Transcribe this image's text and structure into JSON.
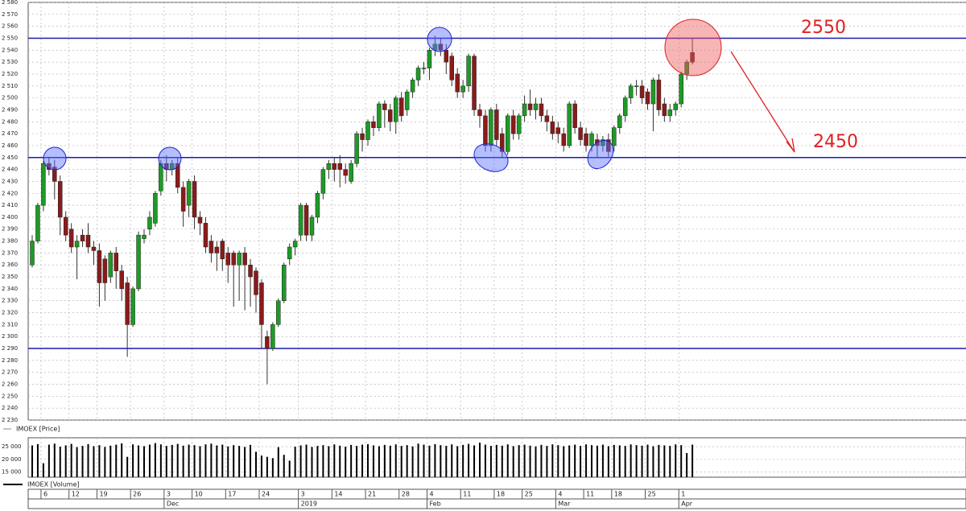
{
  "chart_data": {
    "type": "candlestick",
    "price_legend": "IMOEX [Price]",
    "volume_legend": "IMOEX [Volume]",
    "up_color": "#1e9a26",
    "down_color": "#8a1b1b",
    "level_color": "#1a1ab0",
    "ylim": [
      2230,
      2580
    ],
    "yticks": [
      {
        "value": 2230,
        "label": "2 230"
      },
      {
        "value": 2240,
        "label": "2 240"
      },
      {
        "value": 2250,
        "label": "2 250"
      },
      {
        "value": 2260,
        "label": "2 260"
      },
      {
        "value": 2270,
        "label": "2 270"
      },
      {
        "value": 2280,
        "label": "2 280"
      },
      {
        "value": 2290,
        "label": "2 290"
      },
      {
        "value": 2300,
        "label": "2 300"
      },
      {
        "value": 2310,
        "label": "2 310"
      },
      {
        "value": 2320,
        "label": "2 320"
      },
      {
        "value": 2330,
        "label": "2 330"
      },
      {
        "value": 2340,
        "label": "2 340"
      },
      {
        "value": 2350,
        "label": "2 350"
      },
      {
        "value": 2360,
        "label": "2 360"
      },
      {
        "value": 2370,
        "label": "2 370"
      },
      {
        "value": 2380,
        "label": "2 380"
      },
      {
        "value": 2390,
        "label": "2 390"
      },
      {
        "value": 2400,
        "label": "2 400"
      },
      {
        "value": 2410,
        "label": "2 410"
      },
      {
        "value": 2420,
        "label": "2 420"
      },
      {
        "value": 2430,
        "label": "2 430"
      },
      {
        "value": 2440,
        "label": "2 440"
      },
      {
        "value": 2450,
        "label": "2 450"
      },
      {
        "value": 2460,
        "label": "2 460"
      },
      {
        "value": 2470,
        "label": "2 470"
      },
      {
        "value": 2480,
        "label": "2 480"
      },
      {
        "value": 2490,
        "label": "2 490"
      },
      {
        "value": 2500,
        "label": "2 500"
      },
      {
        "value": 2510,
        "label": "2 510"
      },
      {
        "value": 2520,
        "label": "2 520"
      },
      {
        "value": 2530,
        "label": "2 530"
      },
      {
        "value": 2540,
        "label": "2 540"
      },
      {
        "value": 2550,
        "label": "2 550"
      },
      {
        "value": 2560,
        "label": "2 560"
      },
      {
        "value": 2570,
        "label": "2 570"
      },
      {
        "value": 2580,
        "label": "2 580"
      }
    ],
    "levels": [
      2550,
      2450,
      2290
    ],
    "annotations": [
      "2550",
      "2450"
    ],
    "vylim": [
      13000,
      28500
    ],
    "vyticks": [
      {
        "value": 25000,
        "label": "25 000"
      },
      {
        "value": 20000,
        "label": "20 000"
      },
      {
        "value": 15000,
        "label": "15 000"
      }
    ],
    "xticks": [
      {
        "value": 1,
        "label": "6"
      },
      {
        "value": 6,
        "label": "12"
      },
      {
        "value": 11,
        "label": "19"
      },
      {
        "value": 17,
        "label": "26"
      },
      {
        "value": 23,
        "label": "3"
      },
      {
        "value": 28,
        "label": "10"
      },
      {
        "value": 34,
        "label": "17"
      },
      {
        "value": 40,
        "label": "24"
      },
      {
        "value": 47,
        "label": "3"
      },
      {
        "value": 53,
        "label": "14"
      },
      {
        "value": 59,
        "label": "21"
      },
      {
        "value": 65,
        "label": "28"
      },
      {
        "value": 70,
        "label": "4"
      },
      {
        "value": 76,
        "label": "11"
      },
      {
        "value": 82,
        "label": "18"
      },
      {
        "value": 87,
        "label": "25"
      },
      {
        "value": 93,
        "label": "4"
      },
      {
        "value": 98,
        "label": "11"
      },
      {
        "value": 103,
        "label": "18"
      },
      {
        "value": 109,
        "label": "25"
      },
      {
        "value": 115,
        "label": "1"
      }
    ],
    "month_ticks": [
      {
        "value": 23,
        "label": "Dec"
      },
      {
        "value": 47,
        "label": "2019"
      },
      {
        "value": 70,
        "label": "Feb"
      },
      {
        "value": 93,
        "label": "Mar"
      },
      {
        "value": 115,
        "label": "Apr"
      }
    ],
    "ohlc": [
      [
        2360,
        2385,
        2358,
        2380
      ],
      [
        2380,
        2412,
        2378,
        2410
      ],
      [
        2410,
        2447,
        2405,
        2445
      ],
      [
        2445,
        2450,
        2435,
        2440
      ],
      [
        2442,
        2448,
        2415,
        2430
      ],
      [
        2430,
        2435,
        2385,
        2400
      ],
      [
        2400,
        2405,
        2380,
        2385
      ],
      [
        2390,
        2395,
        2370,
        2375
      ],
      [
        2375,
        2385,
        2348,
        2380
      ],
      [
        2385,
        2390,
        2375,
        2380
      ],
      [
        2385,
        2395,
        2370,
        2375
      ],
      [
        2375,
        2380,
        2360,
        2372
      ],
      [
        2372,
        2378,
        2325,
        2345
      ],
      [
        2365,
        2368,
        2330,
        2345
      ],
      [
        2350,
        2372,
        2345,
        2370
      ],
      [
        2370,
        2375,
        2340,
        2355
      ],
      [
        2355,
        2360,
        2330,
        2340
      ],
      [
        2345,
        2350,
        2283,
        2310
      ],
      [
        2310,
        2342,
        2308,
        2340
      ],
      [
        2340,
        2388,
        2338,
        2385
      ],
      [
        2382,
        2390,
        2378,
        2385
      ],
      [
        2390,
        2405,
        2385,
        2400
      ],
      [
        2395,
        2422,
        2392,
        2420
      ],
      [
        2422,
        2448,
        2418,
        2445
      ],
      [
        2445,
        2452,
        2430,
        2440
      ],
      [
        2440,
        2448,
        2435,
        2445
      ],
      [
        2445,
        2450,
        2420,
        2425
      ],
      [
        2425,
        2430,
        2392,
        2405
      ],
      [
        2410,
        2432,
        2400,
        2430
      ],
      [
        2430,
        2435,
        2390,
        2400
      ],
      [
        2400,
        2405,
        2385,
        2395
      ],
      [
        2395,
        2400,
        2370,
        2375
      ],
      [
        2380,
        2385,
        2362,
        2370
      ],
      [
        2375,
        2380,
        2355,
        2370
      ],
      [
        2380,
        2382,
        2355,
        2365
      ],
      [
        2370,
        2375,
        2345,
        2360
      ],
      [
        2370,
        2372,
        2325,
        2360
      ],
      [
        2360,
        2372,
        2330,
        2370
      ],
      [
        2370,
        2375,
        2322,
        2360
      ],
      [
        2360,
        2365,
        2325,
        2350
      ],
      [
        2355,
        2358,
        2320,
        2335
      ],
      [
        2345,
        2348,
        2290,
        2310
      ],
      [
        2300,
        2305,
        2260,
        2290
      ],
      [
        2290,
        2312,
        2288,
        2310
      ],
      [
        2310,
        2332,
        2308,
        2330
      ],
      [
        2330,
        2362,
        2328,
        2360
      ],
      [
        2365,
        2378,
        2360,
        2375
      ],
      [
        2375,
        2382,
        2368,
        2380
      ],
      [
        2385,
        2412,
        2380,
        2410
      ],
      [
        2410,
        2412,
        2380,
        2385
      ],
      [
        2385,
        2402,
        2380,
        2400
      ],
      [
        2400,
        2422,
        2395,
        2420
      ],
      [
        2420,
        2442,
        2415,
        2440
      ],
      [
        2440,
        2448,
        2432,
        2445
      ],
      [
        2445,
        2450,
        2430,
        2440
      ],
      [
        2445,
        2452,
        2425,
        2440
      ],
      [
        2440,
        2445,
        2428,
        2435
      ],
      [
        2430,
        2448,
        2428,
        2445
      ],
      [
        2445,
        2472,
        2442,
        2470
      ],
      [
        2470,
        2475,
        2455,
        2465
      ],
      [
        2465,
        2482,
        2460,
        2480
      ],
      [
        2480,
        2485,
        2468,
        2475
      ],
      [
        2475,
        2497,
        2472,
        2495
      ],
      [
        2495,
        2498,
        2475,
        2490
      ],
      [
        2490,
        2495,
        2472,
        2480
      ],
      [
        2480,
        2502,
        2470,
        2500
      ],
      [
        2500,
        2505,
        2480,
        2485
      ],
      [
        2490,
        2507,
        2485,
        2505
      ],
      [
        2505,
        2517,
        2500,
        2515
      ],
      [
        2515,
        2527,
        2510,
        2525
      ],
      [
        2525,
        2530,
        2520,
        2525
      ],
      [
        2525,
        2542,
        2515,
        2540
      ],
      [
        2540,
        2552,
        2535,
        2545
      ],
      [
        2545,
        2550,
        2535,
        2540
      ],
      [
        2540,
        2545,
        2520,
        2530
      ],
      [
        2535,
        2538,
        2510,
        2515
      ],
      [
        2520,
        2525,
        2500,
        2505
      ],
      [
        2505,
        2515,
        2500,
        2510
      ],
      [
        2510,
        2537,
        2505,
        2535
      ],
      [
        2535,
        2537,
        2485,
        2490
      ],
      [
        2490,
        2495,
        2475,
        2485
      ],
      [
        2485,
        2490,
        2455,
        2460
      ],
      [
        2460,
        2492,
        2455,
        2490
      ],
      [
        2490,
        2495,
        2460,
        2465
      ],
      [
        2470,
        2475,
        2450,
        2455
      ],
      [
        2455,
        2487,
        2452,
        2485
      ],
      [
        2485,
        2490,
        2465,
        2470
      ],
      [
        2470,
        2487,
        2465,
        2485
      ],
      [
        2485,
        2502,
        2480,
        2495
      ],
      [
        2495,
        2507,
        2485,
        2490
      ],
      [
        2490,
        2500,
        2482,
        2495
      ],
      [
        2495,
        2500,
        2480,
        2485
      ],
      [
        2485,
        2490,
        2472,
        2480
      ],
      [
        2480,
        2485,
        2465,
        2470
      ],
      [
        2475,
        2480,
        2462,
        2470
      ],
      [
        2470,
        2475,
        2455,
        2460
      ],
      [
        2460,
        2497,
        2458,
        2495
      ],
      [
        2495,
        2498,
        2470,
        2475
      ],
      [
        2475,
        2480,
        2460,
        2465
      ],
      [
        2470,
        2475,
        2455,
        2460
      ],
      [
        2460,
        2472,
        2455,
        2470
      ],
      [
        2465,
        2470,
        2450,
        2460
      ],
      [
        2460,
        2468,
        2455,
        2465
      ],
      [
        2465,
        2470,
        2450,
        2455
      ],
      [
        2460,
        2477,
        2455,
        2475
      ],
      [
        2475,
        2487,
        2470,
        2485
      ],
      [
        2485,
        2502,
        2480,
        2500
      ],
      [
        2500,
        2512,
        2495,
        2510
      ],
      [
        2510,
        2515,
        2502,
        2510
      ],
      [
        2510,
        2515,
        2495,
        2500
      ],
      [
        2505,
        2508,
        2490,
        2495
      ],
      [
        2495,
        2517,
        2472,
        2515
      ],
      [
        2515,
        2520,
        2485,
        2490
      ],
      [
        2495,
        2500,
        2480,
        2485
      ],
      [
        2485,
        2495,
        2480,
        2490
      ],
      [
        2490,
        2497,
        2485,
        2495
      ],
      [
        2495,
        2522,
        2492,
        2520
      ],
      [
        2520,
        2532,
        2515,
        2530
      ],
      [
        2538,
        2550,
        2528,
        2530
      ]
    ],
    "volume": [
      25500,
      26000,
      18500,
      25800,
      26200,
      25000,
      25500,
      26100,
      24800,
      25300,
      26000,
      25200,
      25600,
      24900,
      25400,
      25800,
      26300,
      21000,
      25900,
      25500,
      25200,
      25800,
      26400,
      25900,
      25300,
      25700,
      26100,
      25400,
      25800,
      25600,
      25200,
      25900,
      26200,
      25500,
      25800,
      25100,
      25600,
      25300,
      24900,
      25700,
      23000,
      21500,
      21000,
      20500,
      24800,
      21800,
      19500,
      25000,
      25500,
      25800,
      24900,
      25300,
      25600,
      25200,
      25900,
      25400,
      25000,
      25700,
      25300,
      25800,
      26000,
      25500,
      25200,
      25700,
      25400,
      25900,
      25300,
      25600,
      25100,
      26200,
      25800,
      25400,
      26000,
      25600,
      25300,
      25900,
      25200,
      25700,
      26100,
      25500,
      26600,
      25800,
      25300,
      25700,
      25400,
      25900,
      25200,
      25600,
      25800,
      25400,
      25100,
      25700,
      25300,
      25900,
      25600,
      25200,
      25500,
      25800,
      25300,
      25900,
      25600,
      25400,
      25800,
      25200,
      25700,
      25500,
      25300,
      25900,
      25600,
      25400,
      25800,
      25200,
      25700,
      25500,
      25300,
      25900,
      25600,
      22500,
      25800
    ]
  }
}
